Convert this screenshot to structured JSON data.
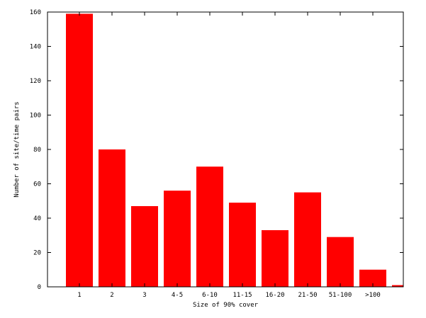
{
  "chart_data": {
    "type": "bar",
    "categories": [
      "1",
      "2",
      "3",
      "4-5",
      "6-10",
      "11-15",
      "16-20",
      "21-50",
      "51-100",
      ">100",
      ""
    ],
    "values": [
      159,
      80,
      47,
      56,
      70,
      49,
      33,
      55,
      29,
      10,
      1
    ],
    "xlabel": "Size of 90% cover",
    "ylabel": "Number of site/time pairs",
    "ylim": [
      0,
      160
    ],
    "yticks": [
      0,
      20,
      40,
      60,
      80,
      100,
      120,
      140,
      160
    ],
    "grid": false,
    "legend": "none",
    "bar_color": "#ff0000"
  }
}
